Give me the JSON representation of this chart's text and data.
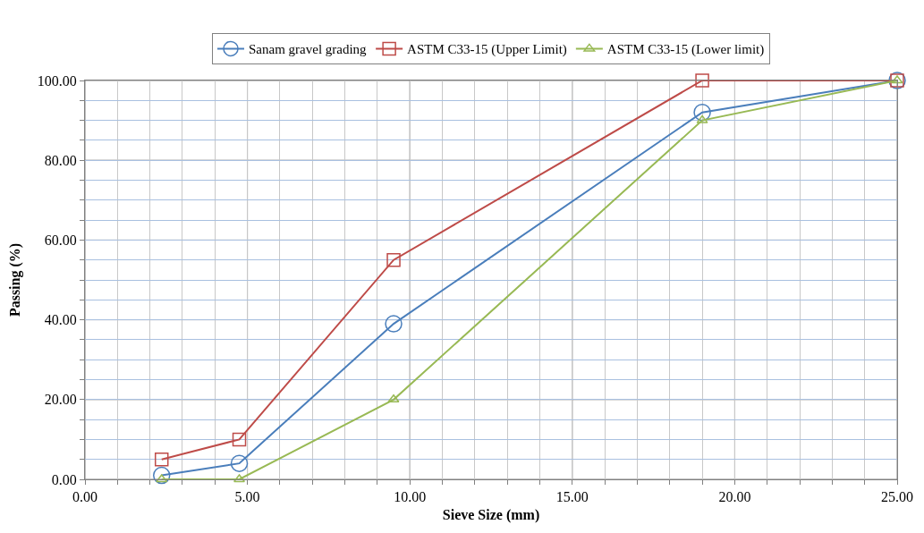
{
  "chart_data": {
    "type": "line",
    "xlabel": "Sieve Size (mm)",
    "ylabel": "Passing (%)",
    "x": [
      2.36,
      4.75,
      9.5,
      19,
      25
    ],
    "series": [
      {
        "name": "Sanam gravel grading",
        "color": "#4a7ebb",
        "values": [
          1,
          4,
          39,
          92,
          100
        ],
        "marker": "circle"
      },
      {
        "name": "ASTM C33-15 (Upper Limit)",
        "color": "#be4b48",
        "values": [
          5,
          10,
          55,
          100,
          100
        ],
        "marker": "square"
      },
      {
        "name": "ASTM C33-15 (Lower limit)",
        "color": "#98b954",
        "values": [
          0,
          0,
          20,
          90,
          100
        ],
        "marker": "triangle"
      }
    ],
    "xlim": [
      0,
      25
    ],
    "xticks": [
      {
        "value": 0,
        "label": "0.00"
      },
      {
        "value": 1,
        "label": null
      },
      {
        "value": 2,
        "label": null
      },
      {
        "value": 3,
        "label": null
      },
      {
        "value": 4,
        "label": null
      },
      {
        "value": 5,
        "label": "5.00"
      },
      {
        "value": 6,
        "label": null
      },
      {
        "value": 7,
        "label": null
      },
      {
        "value": 8,
        "label": null
      },
      {
        "value": 9,
        "label": null
      },
      {
        "value": 10,
        "label": "10.00"
      },
      {
        "value": 11,
        "label": null
      },
      {
        "value": 12,
        "label": null
      },
      {
        "value": 13,
        "label": null
      },
      {
        "value": 14,
        "label": null
      },
      {
        "value": 15,
        "label": "15.00"
      },
      {
        "value": 16,
        "label": null
      },
      {
        "value": 17,
        "label": null
      },
      {
        "value": 18,
        "label": null
      },
      {
        "value": 19,
        "label": null
      },
      {
        "value": 20,
        "label": "20.00"
      },
      {
        "value": 21,
        "label": null
      },
      {
        "value": 22,
        "label": null
      },
      {
        "value": 23,
        "label": null
      },
      {
        "value": 24,
        "label": null
      },
      {
        "value": 25,
        "label": "25.00"
      }
    ],
    "ylim": [
      0,
      100
    ],
    "yticks": [
      {
        "value": 0,
        "label": "0.00"
      },
      {
        "value": 5,
        "label": null
      },
      {
        "value": 10,
        "label": null
      },
      {
        "value": 15,
        "label": null
      },
      {
        "value": 20,
        "label": "20.00"
      },
      {
        "value": 25,
        "label": null
      },
      {
        "value": 30,
        "label": null
      },
      {
        "value": 35,
        "label": null
      },
      {
        "value": 40,
        "label": "40.00"
      },
      {
        "value": 45,
        "label": null
      },
      {
        "value": 50,
        "label": null
      },
      {
        "value": 55,
        "label": null
      },
      {
        "value": 60,
        "label": "60.00"
      },
      {
        "value": 65,
        "label": null
      },
      {
        "value": 70,
        "label": null
      },
      {
        "value": 75,
        "label": null
      },
      {
        "value": 80,
        "label": "80.00"
      },
      {
        "value": 85,
        "label": null
      },
      {
        "value": 90,
        "label": null
      },
      {
        "value": 95,
        "label": null
      },
      {
        "value": 100,
        "label": "100.00"
      }
    ],
    "grid": true,
    "legend": "top",
    "line_style": "solid"
  }
}
